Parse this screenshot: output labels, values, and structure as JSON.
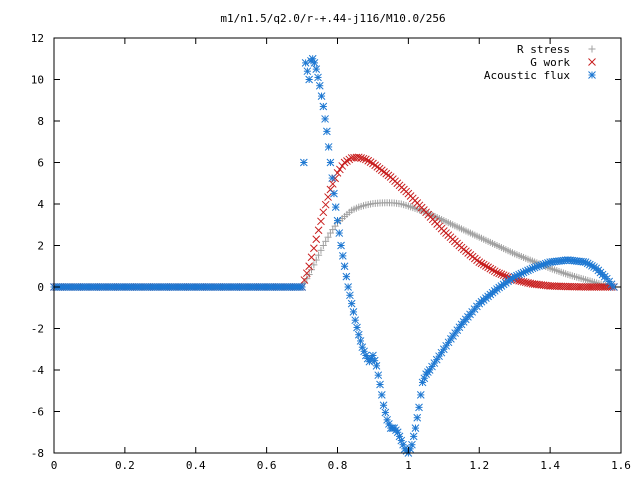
{
  "chart_data": {
    "type": "scatter",
    "title": "m1/n1.5/q2.0/r-+.44-j116/M10.0/256",
    "xlabel": "",
    "ylabel": "",
    "xlim": [
      0,
      1.6
    ],
    "ylim": [
      -8,
      12
    ],
    "x_ticks": [
      "0",
      "0.2",
      "0.4",
      "0.6",
      "0.8",
      "1",
      "1.2",
      "1.4",
      "1.6"
    ],
    "y_ticks": [
      "12",
      "10",
      "8",
      "6",
      "4",
      "2",
      "0",
      "-2",
      "-4",
      "-6",
      "-8"
    ],
    "grid": false,
    "legend_position": "top-right",
    "series": [
      {
        "name": "R stress",
        "marker": "plus",
        "color": "#a0a0a0",
        "points": [
          [
            0,
            0
          ],
          [
            0.7,
            0
          ],
          [
            0.72,
            0.6
          ],
          [
            0.74,
            1.3
          ],
          [
            0.76,
            2.0
          ],
          [
            0.78,
            2.6
          ],
          [
            0.8,
            3.1
          ],
          [
            0.82,
            3.4
          ],
          [
            0.84,
            3.7
          ],
          [
            0.86,
            3.85
          ],
          [
            0.88,
            3.95
          ],
          [
            0.9,
            4.02
          ],
          [
            0.92,
            4.05
          ],
          [
            0.94,
            4.06
          ],
          [
            0.96,
            4.05
          ],
          [
            0.98,
            4.0
          ],
          [
            1.0,
            3.9
          ],
          [
            1.05,
            3.6
          ],
          [
            1.1,
            3.2
          ],
          [
            1.15,
            2.8
          ],
          [
            1.2,
            2.4
          ],
          [
            1.25,
            2.0
          ],
          [
            1.3,
            1.6
          ],
          [
            1.35,
            1.25
          ],
          [
            1.4,
            0.9
          ],
          [
            1.45,
            0.6
          ],
          [
            1.5,
            0.35
          ],
          [
            1.55,
            0.1
          ],
          [
            1.58,
            0
          ]
        ]
      },
      {
        "name": "G work",
        "marker": "cross",
        "color": "#c81e1e",
        "points": [
          [
            0,
            0
          ],
          [
            0.7,
            0
          ],
          [
            0.72,
            1.0
          ],
          [
            0.74,
            2.3
          ],
          [
            0.76,
            3.6
          ],
          [
            0.78,
            4.7
          ],
          [
            0.8,
            5.5
          ],
          [
            0.82,
            6.0
          ],
          [
            0.84,
            6.22
          ],
          [
            0.86,
            6.25
          ],
          [
            0.88,
            6.15
          ],
          [
            0.9,
            5.95
          ],
          [
            0.95,
            5.3
          ],
          [
            1.0,
            4.5
          ],
          [
            1.05,
            3.6
          ],
          [
            1.1,
            2.7
          ],
          [
            1.15,
            1.9
          ],
          [
            1.2,
            1.2
          ],
          [
            1.25,
            0.7
          ],
          [
            1.3,
            0.35
          ],
          [
            1.35,
            0.15
          ],
          [
            1.4,
            0.05
          ],
          [
            1.45,
            0.02
          ],
          [
            1.5,
            0
          ],
          [
            1.58,
            0
          ]
        ]
      },
      {
        "name": "Acoustic flux",
        "marker": "star",
        "color": "#1e78d2",
        "points": [
          [
            0,
            0
          ],
          [
            0.7,
            0
          ],
          [
            0.705,
            6.0
          ],
          [
            0.71,
            10.8
          ],
          [
            0.72,
            10.0
          ],
          [
            0.725,
            10.9
          ],
          [
            0.73,
            11.0
          ],
          [
            0.735,
            10.8
          ],
          [
            0.74,
            10.5
          ],
          [
            0.75,
            9.7
          ],
          [
            0.76,
            8.7
          ],
          [
            0.77,
            7.5
          ],
          [
            0.78,
            6.0
          ],
          [
            0.79,
            4.5
          ],
          [
            0.8,
            3.2
          ],
          [
            0.81,
            2.0
          ],
          [
            0.82,
            1.0
          ],
          [
            0.83,
            0
          ],
          [
            0.84,
            -0.8
          ],
          [
            0.85,
            -1.6
          ],
          [
            0.86,
            -2.3
          ],
          [
            0.87,
            -2.9
          ],
          [
            0.88,
            -3.3
          ],
          [
            0.89,
            -3.6
          ],
          [
            0.9,
            -3.3
          ],
          [
            0.91,
            -3.8
          ],
          [
            0.92,
            -4.7
          ],
          [
            0.93,
            -5.7
          ],
          [
            0.94,
            -6.4
          ],
          [
            0.95,
            -6.8
          ],
          [
            0.96,
            -6.8
          ],
          [
            0.97,
            -7.0
          ],
          [
            0.98,
            -7.4
          ],
          [
            0.99,
            -7.8
          ],
          [
            1.0,
            -8.0
          ],
          [
            1.01,
            -7.6
          ],
          [
            1.02,
            -6.8
          ],
          [
            1.03,
            -5.8
          ],
          [
            1.04,
            -4.6
          ],
          [
            1.05,
            -4.2
          ],
          [
            1.06,
            -4.0
          ],
          [
            1.08,
            -3.5
          ],
          [
            1.1,
            -3.0
          ],
          [
            1.12,
            -2.5
          ],
          [
            1.15,
            -1.8
          ],
          [
            1.18,
            -1.2
          ],
          [
            1.2,
            -0.8
          ],
          [
            1.25,
            -0.1
          ],
          [
            1.3,
            0.5
          ],
          [
            1.35,
            0.9
          ],
          [
            1.4,
            1.2
          ],
          [
            1.45,
            1.3
          ],
          [
            1.5,
            1.2
          ],
          [
            1.53,
            0.9
          ],
          [
            1.56,
            0.4
          ],
          [
            1.58,
            0
          ]
        ]
      }
    ]
  }
}
